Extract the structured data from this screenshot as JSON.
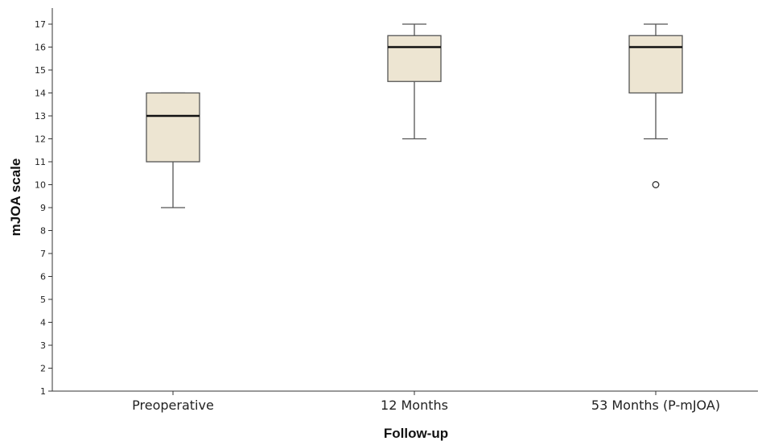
{
  "chart_data": {
    "type": "boxplot",
    "xlabel": "Follow-up",
    "ylabel": "mJOA scale",
    "ylim": [
      1,
      17
    ],
    "yticks": [
      1,
      2,
      3,
      4,
      5,
      6,
      7,
      8,
      9,
      10,
      11,
      12,
      13,
      14,
      15,
      16,
      17
    ],
    "categories": [
      "Preoperative",
      "12 Months",
      "53 Months (P-mJOA)"
    ],
    "boxes": [
      {
        "category": "Preoperative",
        "min": 9,
        "q1": 11,
        "median": 13,
        "q3": 14,
        "max": 14,
        "outliers": []
      },
      {
        "category": "12 Months",
        "min": 12,
        "q1": 14.5,
        "median": 16,
        "q3": 16.5,
        "max": 17,
        "outliers": []
      },
      {
        "category": "53 Months (P-mJOA)",
        "min": 12,
        "q1": 14,
        "median": 16,
        "q3": 16.5,
        "max": 17,
        "outliers": [
          10
        ]
      }
    ],
    "grid": false,
    "legend": "none",
    "colors": {
      "box_fill": "#ede5d2",
      "box_stroke": "#555555",
      "median": "#111111",
      "axis": "#333333"
    }
  }
}
